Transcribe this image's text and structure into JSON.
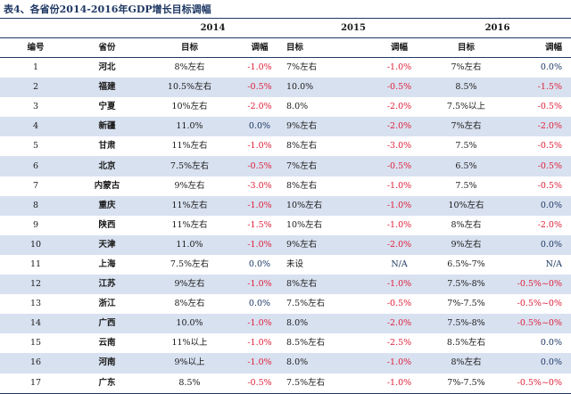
{
  "title": "表4、各省份2014-2016年GDP增长目标调幅",
  "years": [
    "2014",
    "2015",
    "2016"
  ],
  "columns": {
    "no": "编号",
    "province": "省份",
    "target": "目标",
    "change": "调幅"
  },
  "rows": [
    {
      "no": "1",
      "province": "河北",
      "t2014": "8%左右",
      "c2014": "-1.0%",
      "t2015": "7%左右",
      "c2015": "-1.0%",
      "t2016": "7%左右",
      "c2016": "0.0%"
    },
    {
      "no": "2",
      "province": "福建",
      "t2014": "10.5%左右",
      "c2014": "-0.5%",
      "t2015": "10.0%",
      "c2015": "-0.5%",
      "t2016": "8.5%",
      "c2016": "-1.5%"
    },
    {
      "no": "3",
      "province": "宁夏",
      "t2014": "10%左右",
      "c2014": "-2.0%",
      "t2015": "8.0%",
      "c2015": "-2.0%",
      "t2016": "7.5%以上",
      "c2016": "-0.5%"
    },
    {
      "no": "4",
      "province": "新疆",
      "t2014": "11.0%",
      "c2014": "0.0%",
      "t2015": "9%左右",
      "c2015": "-2.0%",
      "t2016": "7%左右",
      "c2016": "-2.0%"
    },
    {
      "no": "5",
      "province": "甘肃",
      "t2014": "11%左右",
      "c2014": "-1.0%",
      "t2015": "8%左右",
      "c2015": "-3.0%",
      "t2016": "7.5%",
      "c2016": "-0.5%"
    },
    {
      "no": "6",
      "province": "北京",
      "t2014": "7.5%左右",
      "c2014": "-0.5%",
      "t2015": "7%左右",
      "c2015": "-0.5%",
      "t2016": "6.5%",
      "c2016": "-0.5%"
    },
    {
      "no": "7",
      "province": "内蒙古",
      "t2014": "9%左右",
      "c2014": "-3.0%",
      "t2015": "8%左右",
      "c2015": "-1.0%",
      "t2016": "7.5%",
      "c2016": "-0.5%"
    },
    {
      "no": "8",
      "province": "重庆",
      "t2014": "11%左右",
      "c2014": "-1.0%",
      "t2015": "10%左右",
      "c2015": "-1.0%",
      "t2016": "10%左右",
      "c2016": "0.0%"
    },
    {
      "no": "9",
      "province": "陕西",
      "t2014": "11%左右",
      "c2014": "-1.5%",
      "t2015": "10%左右",
      "c2015": "-1.0%",
      "t2016": "8%左右",
      "c2016": "-2.0%"
    },
    {
      "no": "10",
      "province": "天津",
      "t2014": "11.0%",
      "c2014": "-1.0%",
      "t2015": "9%左右",
      "c2015": "-2.0%",
      "t2016": "9%左右",
      "c2016": "0.0%"
    },
    {
      "no": "11",
      "province": "上海",
      "t2014": "7.5%左右",
      "c2014": "0.0%",
      "t2015": "未设",
      "c2015": "N/A",
      "t2016": "6.5%-7%",
      "c2016": "N/A"
    },
    {
      "no": "12",
      "province": "江苏",
      "t2014": "9%左右",
      "c2014": "-1.0%",
      "t2015": "8%左右",
      "c2015": "-1.0%",
      "t2016": "7.5%-8%",
      "c2016": "-0.5%~0%"
    },
    {
      "no": "13",
      "province": "浙江",
      "t2014": "8%左右",
      "c2014": "0.0%",
      "t2015": "7.5%左右",
      "c2015": "-0.5%",
      "t2016": "7%-7.5%",
      "c2016": "-0.5%~0%"
    },
    {
      "no": "14",
      "province": "广西",
      "t2014": "10.0%",
      "c2014": "-1.0%",
      "t2015": "8.0%",
      "c2015": "-2.0%",
      "t2016": "7.5%-8%",
      "c2016": "-0.5%~0%"
    },
    {
      "no": "15",
      "province": "云南",
      "t2014": "11%以上",
      "c2014": "-1.0%",
      "t2015": "8.5%左右",
      "c2015": "-2.5%",
      "t2016": "8.5%左右",
      "c2016": "0.0%"
    },
    {
      "no": "16",
      "province": "河南",
      "t2014": "9%以上",
      "c2014": "-1.0%",
      "t2015": "8.0%",
      "c2015": "-1.0%",
      "t2016": "8%左右",
      "c2016": "0.0%"
    },
    {
      "no": "17",
      "province": "广东",
      "t2014": "8.5%",
      "c2014": "-0.5%",
      "t2015": "7.5%左右",
      "c2015": "-1.0%",
      "t2016": "7%-7.5%",
      "c2016": "-0.5%~0%"
    }
  ],
  "colors": {
    "header_text": "#1f3864",
    "negative": "#e0203a",
    "stripe": "#d8e1f0"
  }
}
